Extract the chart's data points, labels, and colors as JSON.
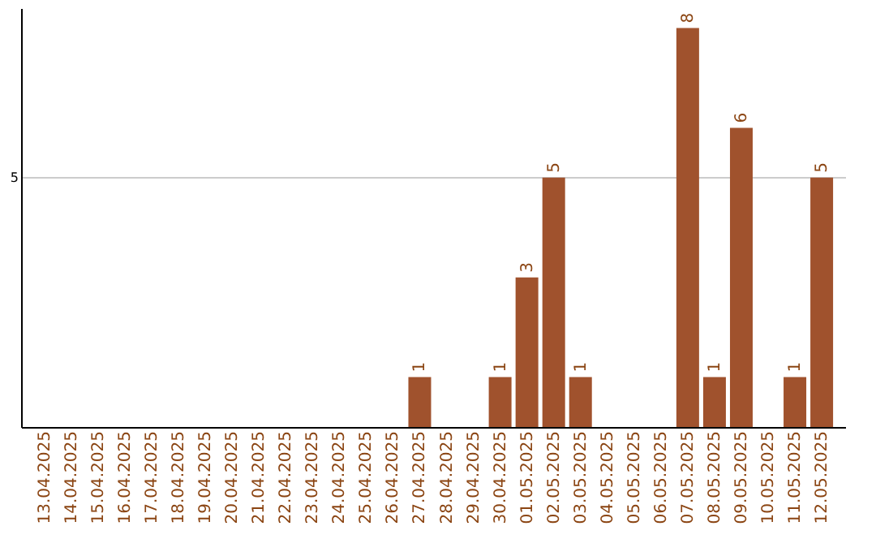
{
  "chart_data": {
    "type": "bar",
    "categories": [
      "13.04.2025",
      "14.04.2025",
      "15.04.2025",
      "16.04.2025",
      "17.04.2025",
      "18.04.2025",
      "19.04.2025",
      "20.04.2025",
      "21.04.2025",
      "22.04.2025",
      "23.04.2025",
      "24.04.2025",
      "25.04.2025",
      "26.04.2025",
      "27.04.2025",
      "28.04.2025",
      "29.04.2025",
      "30.04.2025",
      "01.05.2025",
      "02.05.2025",
      "03.05.2025",
      "04.05.2025",
      "05.05.2025",
      "06.05.2025",
      "07.05.2025",
      "08.05.2025",
      "09.05.2025",
      "10.05.2025",
      "11.05.2025",
      "12.05.2025"
    ],
    "values": [
      null,
      null,
      null,
      null,
      null,
      null,
      null,
      null,
      null,
      null,
      null,
      null,
      null,
      null,
      1,
      null,
      null,
      1,
      3,
      5,
      1,
      null,
      null,
      null,
      8,
      1,
      6,
      null,
      1,
      5
    ],
    "data_labels": true,
    "color": "#a0522d",
    "ylim": [
      0,
      8.4
    ],
    "yticks": [
      5
    ],
    "grid": "y"
  }
}
